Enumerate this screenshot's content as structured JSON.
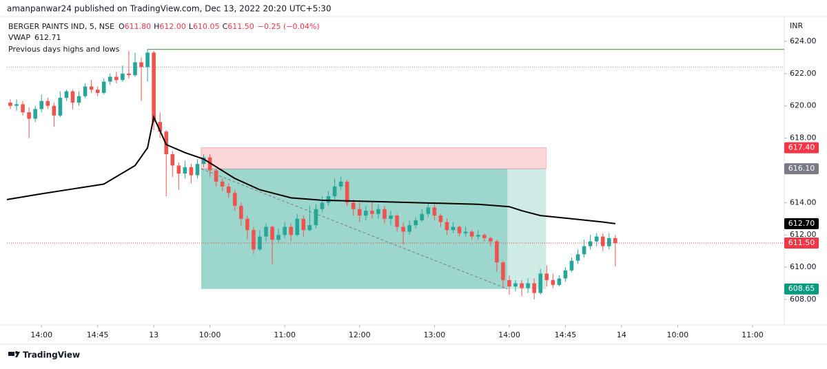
{
  "chart_data": {
    "type": "candlestick",
    "header": "amanpanwar24 published on TradingView.com, Dec 13, 2022 20:20 UTC+5:30",
    "title": "BERGER PAINTS IND, 5, NSE",
    "ohlc": [
      {
        "label": "O",
        "value": "611.80"
      },
      {
        "label": "H",
        "value": "612.00"
      },
      {
        "label": "L",
        "value": "610.05"
      },
      {
        "label": "C",
        "value": "611.50"
      }
    ],
    "change": "−0.25 (−0.04%)",
    "currency": "INR",
    "footer": "TradingView",
    "xlim": [
      -0.55,
      124.09
    ],
    "ylim": [
      606.42,
      625.28
    ],
    "xticks": [
      {
        "value": 5,
        "label": "14:00"
      },
      {
        "value": 14,
        "label": "14:45"
      },
      {
        "value": 23,
        "label": "13"
      },
      {
        "value": 32,
        "label": "10:00"
      },
      {
        "value": 44,
        "label": "11:00"
      },
      {
        "value": 56,
        "label": "12:00"
      },
      {
        "value": 68,
        "label": "13:00"
      },
      {
        "value": 80,
        "label": "14:00"
      },
      {
        "value": 89,
        "label": "14:45"
      },
      {
        "value": 98,
        "label": "14"
      },
      {
        "value": 107,
        "label": "10:00"
      },
      {
        "value": 119,
        "label": "11:00"
      }
    ],
    "yticks": [
      {
        "value": 608,
        "label": "608.00"
      },
      {
        "value": 610,
        "label": "610.00"
      },
      {
        "value": 612,
        "label": "612.00"
      },
      {
        "value": 614,
        "label": "614.00"
      },
      {
        "value": 616,
        "label": "616.00"
      },
      {
        "value": 618,
        "label": "618.00"
      },
      {
        "value": 620,
        "label": "620.00"
      },
      {
        "value": 622,
        "label": "622.00"
      },
      {
        "value": 624,
        "label": "624.00"
      }
    ],
    "series": [
      {
        "name": "BERGER PAINTS IND",
        "up_color": "#26a69a",
        "down_color": "#ef5350",
        "x": [
          0,
          1,
          2,
          3,
          4,
          5,
          6,
          7,
          8,
          9,
          10,
          11,
          12,
          13,
          14,
          15,
          16,
          17,
          18,
          19,
          20,
          21,
          22,
          23,
          24,
          25,
          26,
          27,
          28,
          29,
          30,
          31,
          32,
          33,
          34,
          35,
          36,
          37,
          38,
          39,
          40,
          41,
          42,
          43,
          44,
          45,
          46,
          47,
          48,
          49,
          50,
          51,
          52,
          53,
          54,
          55,
          56,
          57,
          58,
          59,
          60,
          61,
          62,
          63,
          64,
          65,
          66,
          67,
          68,
          69,
          70,
          71,
          72,
          73,
          74,
          75,
          76,
          77,
          78,
          79,
          80,
          81,
          82,
          83,
          84,
          85,
          86,
          87,
          88,
          89,
          90,
          91,
          92,
          93,
          94,
          95,
          96,
          97
        ],
        "open": [
          620.2,
          620.0,
          620.1,
          619.6,
          619.2,
          619.8,
          620.3,
          620.0,
          619.4,
          620.5,
          620.9,
          620.2,
          620.6,
          621.2,
          621.0,
          620.8,
          621.5,
          621.8,
          621.6,
          622.0,
          621.9,
          622.7,
          622.4,
          623.3,
          619.0,
          618.4,
          617.0,
          616.3,
          615.8,
          616.2,
          615.7,
          616.4,
          616.8,
          616.0,
          615.3,
          615.0,
          614.6,
          613.8,
          613.0,
          612.3,
          611.1,
          611.9,
          612.5,
          611.7,
          612.0,
          612.5,
          612.0,
          613.0,
          612.3,
          612.6,
          613.6,
          614.0,
          614.4,
          615.0,
          615.3,
          614.0,
          613.6,
          613.2,
          613.5,
          613.3,
          613.6,
          613.0,
          613.2,
          612.5,
          612.2,
          612.6,
          612.9,
          613.3,
          613.7,
          613.2,
          612.8,
          612.3,
          612.5,
          612.1,
          612.2,
          611.9,
          612.0,
          611.8,
          611.6,
          610.3,
          609.2,
          608.8,
          609.0,
          608.7,
          609.0,
          608.4,
          609.6,
          609.2,
          608.9,
          609.3,
          609.8,
          610.4,
          610.8,
          611.3,
          611.6,
          611.9,
          611.3,
          611.8
        ],
        "high": [
          620.4,
          620.4,
          620.3,
          619.9,
          620.0,
          620.7,
          620.5,
          620.2,
          620.9,
          621.0,
          621.0,
          620.9,
          621.4,
          621.6,
          621.2,
          621.7,
          622.0,
          622.1,
          622.5,
          623.4,
          623.3,
          623.0,
          623.5,
          623.4,
          619.6,
          618.5,
          617.2,
          616.5,
          616.6,
          616.4,
          616.7,
          617.0,
          617.0,
          616.1,
          615.5,
          615.2,
          614.8,
          614.0,
          613.2,
          612.5,
          612.3,
          612.7,
          612.6,
          612.4,
          612.8,
          612.7,
          613.3,
          613.2,
          613.8,
          613.9,
          614.4,
          614.7,
          615.5,
          615.6,
          615.4,
          614.2,
          614.0,
          613.8,
          614.1,
          613.9,
          613.8,
          613.5,
          613.3,
          612.8,
          612.9,
          613.1,
          613.6,
          614.0,
          613.9,
          613.3,
          613.0,
          612.8,
          612.6,
          612.5,
          612.3,
          612.3,
          612.1,
          611.9,
          611.7,
          610.4,
          609.5,
          609.2,
          609.2,
          609.3,
          609.3,
          609.9,
          610.1,
          609.6,
          609.5,
          610.0,
          610.6,
          611.1,
          611.7,
          612.0,
          612.1,
          612.1,
          612.1,
          612.0
        ],
        "low": [
          619.8,
          619.7,
          619.4,
          618.0,
          619.0,
          619.6,
          619.8,
          618.7,
          619.3,
          620.3,
          619.8,
          620.0,
          620.5,
          620.8,
          620.6,
          620.7,
          621.3,
          621.4,
          621.5,
          621.7,
          621.8,
          620.3,
          621.5,
          618.5,
          618.0,
          614.4,
          615.6,
          614.8,
          615.5,
          615.2,
          615.5,
          616.2,
          615.6,
          615.0,
          614.7,
          614.3,
          613.5,
          612.6,
          611.7,
          610.8,
          611.0,
          611.6,
          610.2,
          611.5,
          611.8,
          611.6,
          611.9,
          611.9,
          612.2,
          612.4,
          613.4,
          613.8,
          614.2,
          614.8,
          613.8,
          613.2,
          612.8,
          612.9,
          613.0,
          613.0,
          612.7,
          612.6,
          612.2,
          611.4,
          612.0,
          612.4,
          612.8,
          613.1,
          612.9,
          612.5,
          612.0,
          612.1,
          611.9,
          611.9,
          611.7,
          611.7,
          611.6,
          611.3,
          609.7,
          608.7,
          608.3,
          608.5,
          608.2,
          608.4,
          608.0,
          608.3,
          608.8,
          608.7,
          608.8,
          609.1,
          609.7,
          610.2,
          610.6,
          611.1,
          611.3,
          611.0,
          611.1,
          610.05
        ],
        "close": [
          620.0,
          620.1,
          619.6,
          619.2,
          619.8,
          620.3,
          620.0,
          619.4,
          620.5,
          620.9,
          620.2,
          620.6,
          621.2,
          621.0,
          620.8,
          621.5,
          621.8,
          621.6,
          622.0,
          621.9,
          622.7,
          622.4,
          623.3,
          619.0,
          618.4,
          617.0,
          616.3,
          615.8,
          616.2,
          615.7,
          616.4,
          616.8,
          616.0,
          615.3,
          615.0,
          614.6,
          613.8,
          613.0,
          612.3,
          611.1,
          611.9,
          612.5,
          611.7,
          612.0,
          612.5,
          612.0,
          613.0,
          612.3,
          612.6,
          613.6,
          614.0,
          614.4,
          615.0,
          615.3,
          614.0,
          613.6,
          613.2,
          613.5,
          613.3,
          613.6,
          613.0,
          613.2,
          612.5,
          612.2,
          612.6,
          612.9,
          613.3,
          613.7,
          613.2,
          612.8,
          612.3,
          612.5,
          612.1,
          612.2,
          611.9,
          612.0,
          611.8,
          611.6,
          610.3,
          609.2,
          608.8,
          609.0,
          608.7,
          609.0,
          608.4,
          609.6,
          609.2,
          608.9,
          609.3,
          609.8,
          610.4,
          610.8,
          611.3,
          611.6,
          611.9,
          611.3,
          611.8,
          611.5
        ]
      }
    ],
    "vwap": {
      "name": "VWAP",
      "value": "612.71",
      "color": "#000000",
      "x": [
        -0.55,
        5,
        10,
        15,
        20,
        22,
        23,
        25,
        28,
        31,
        36,
        40,
        45,
        50,
        55,
        60,
        65,
        70,
        75,
        80,
        82,
        85,
        90,
        95,
        97
      ],
      "values": [
        614.19,
        614.55,
        614.85,
        615.15,
        616.3,
        617.4,
        619.3,
        617.6,
        617.1,
        616.7,
        615.5,
        614.8,
        614.3,
        614.15,
        614.1,
        614.05,
        614.0,
        613.95,
        613.9,
        613.75,
        613.5,
        613.2,
        613.0,
        612.8,
        612.7
      ]
    },
    "indicator": "Previous days highs and lows",
    "previous_high": {
      "value": 623.5,
      "start_x": 22,
      "color": "#388e3c"
    },
    "previous_level": {
      "value": 622.4,
      "color": "#9e9e9e"
    },
    "position": {
      "entry": 616.1,
      "stop": 617.4,
      "target": 608.65,
      "start_x": 30.6,
      "fill_x": 79.7,
      "end_x": 85.9
    },
    "price_labels": [
      {
        "value": 617.4,
        "label": "617.40",
        "color": "#f23645"
      },
      {
        "value": 616.1,
        "label": "616.10",
        "color": "#787b86"
      },
      {
        "value": 612.7,
        "label": "612.70",
        "color": "#000000"
      },
      {
        "value": 611.5,
        "label": "611.50",
        "color": "#f23645"
      },
      {
        "value": 608.65,
        "label": "608.65",
        "color": "#089981"
      }
    ]
  }
}
